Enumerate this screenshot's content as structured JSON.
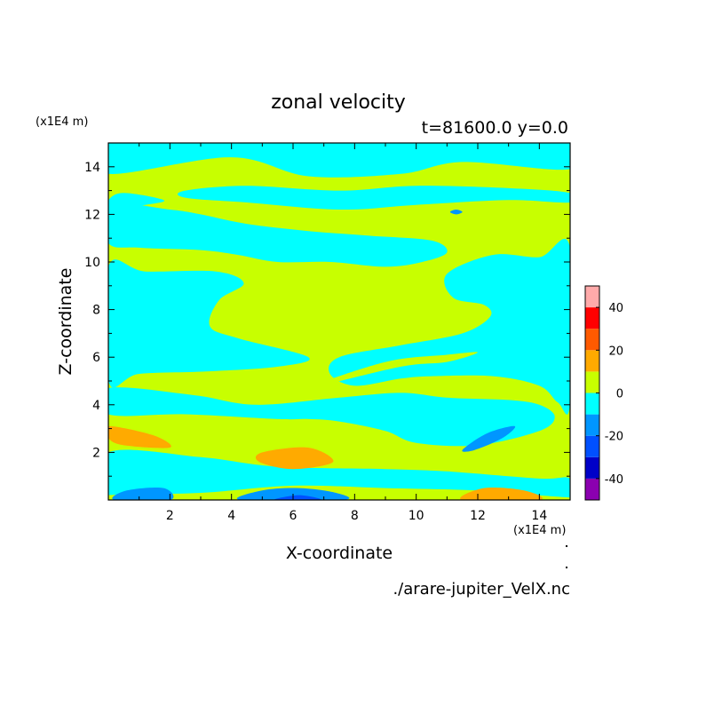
{
  "chart_data": {
    "type": "heatmap",
    "title": "zonal velocity",
    "subtitle": "t=81600.0 y=0.0",
    "xlabel": "X-coordinate",
    "ylabel": "Z-coordinate",
    "x_unit": "(x1E4 m)",
    "y_unit": "(x1E4 m)",
    "source": "./arare-jupiter_VelX.nc",
    "xlim": [
      0,
      15
    ],
    "ylim": [
      0,
      15
    ],
    "x_ticks": [
      "2",
      "4",
      "6",
      "8",
      "10",
      "12",
      "14"
    ],
    "y_ticks": [
      "2",
      "4",
      "6",
      "8",
      "10",
      "12",
      "14"
    ],
    "colorbar": {
      "levels": [
        -50,
        -40,
        -30,
        -20,
        -10,
        0,
        10,
        20,
        30,
        40,
        50
      ],
      "colors": [
        "#8b00b0",
        "#0000c8",
        "#0050ff",
        "#0096ff",
        "#00ffff",
        "#c8ff00",
        "#ffaa00",
        "#ff5a00",
        "#ff0000",
        "#ffaaaa"
      ],
      "tick_labels": [
        "-40",
        "-20",
        "0",
        "20",
        "40"
      ]
    },
    "cyan_regions": [
      [
        [
          0,
          13.7
        ],
        [
          4,
          14.4
        ],
        [
          6.5,
          13.6
        ],
        [
          9.5,
          13.7
        ],
        [
          11.5,
          14.2
        ],
        [
          15,
          13.9
        ],
        [
          15,
          15
        ],
        [
          0,
          15
        ]
      ],
      [
        [
          2.5,
          13.0
        ],
        [
          4.5,
          13.2
        ],
        [
          7.5,
          13.0
        ],
        [
          10,
          13.2
        ],
        [
          13,
          13.1
        ],
        [
          15,
          12.9
        ],
        [
          15,
          12.5
        ],
        [
          13,
          12.6
        ],
        [
          10,
          12.4
        ],
        [
          7.5,
          12.2
        ],
        [
          4.5,
          12.5
        ],
        [
          2.5,
          12.7
        ]
      ],
      [
        [
          0,
          12.4
        ],
        [
          2.0,
          12.2
        ],
        [
          3.0,
          12.0
        ],
        [
          4.5,
          11.6
        ],
        [
          6.5,
          11.3
        ],
        [
          8.5,
          11.1
        ],
        [
          10.5,
          10.9
        ],
        [
          11.0,
          10.4
        ],
        [
          10.2,
          10.0
        ],
        [
          9.0,
          9.8
        ],
        [
          7.2,
          10.0
        ],
        [
          5.5,
          10.0
        ],
        [
          4.2,
          10.3
        ],
        [
          3.0,
          10.5
        ],
        [
          1.0,
          10.6
        ],
        [
          0,
          10.8
        ]
      ],
      [
        [
          0,
          12.6
        ],
        [
          0.5,
          12.9
        ],
        [
          1.8,
          12.6
        ],
        [
          1.2,
          12.4
        ],
        [
          0,
          12.2
        ]
      ],
      [
        [
          11.0,
          9.5
        ],
        [
          12.5,
          10.3
        ],
        [
          14.0,
          10.2
        ],
        [
          15,
          10.6
        ],
        [
          15,
          4.1
        ],
        [
          14.6,
          4.1
        ],
        [
          14.0,
          4.8
        ],
        [
          12.5,
          5.2
        ],
        [
          10.5,
          5.2
        ],
        [
          9.5,
          5.1
        ],
        [
          8.0,
          4.8
        ],
        [
          7.2,
          5.3
        ],
        [
          7.5,
          6.0
        ],
        [
          9.5,
          6.5
        ],
        [
          11.5,
          7.0
        ],
        [
          12.4,
          7.7
        ],
        [
          12.2,
          8.2
        ],
        [
          11.2,
          8.5
        ]
      ],
      [
        [
          0,
          9.8
        ],
        [
          1.2,
          9.6
        ],
        [
          3.5,
          9.6
        ],
        [
          4.4,
          9.1
        ],
        [
          3.6,
          8.4
        ],
        [
          3.3,
          7.3
        ],
        [
          4.2,
          6.8
        ],
        [
          6.5,
          6.0
        ],
        [
          5.5,
          5.6
        ],
        [
          3.2,
          5.4
        ],
        [
          1.0,
          5.3
        ],
        [
          0,
          5.0
        ]
      ],
      [
        [
          0,
          4.7
        ],
        [
          2.8,
          4.4
        ],
        [
          4.8,
          4.0
        ],
        [
          7.5,
          4.3
        ],
        [
          9.5,
          4.5
        ],
        [
          11,
          4.3
        ],
        [
          13,
          4.2
        ],
        [
          14,
          4.0
        ],
        [
          14.5,
          3.5
        ],
        [
          14.0,
          2.9
        ],
        [
          12.0,
          2.3
        ],
        [
          10.0,
          2.4
        ],
        [
          9.0,
          2.9
        ],
        [
          7.5,
          3.3
        ],
        [
          6.5,
          3.4
        ],
        [
          5.5,
          3.4
        ],
        [
          2.5,
          3.6
        ],
        [
          0,
          3.6
        ]
      ],
      [
        [
          0,
          2.0
        ],
        [
          3,
          1.8
        ],
        [
          5.5,
          1.4
        ],
        [
          9,
          1.3
        ],
        [
          11,
          1.2
        ],
        [
          14,
          0.9
        ],
        [
          15,
          0.9
        ],
        [
          15,
          0
        ],
        [
          0,
          0
        ]
      ]
    ],
    "yellow_regions": [
      [
        [
          0,
          0.2
        ],
        [
          3,
          0.3
        ],
        [
          6,
          0.6
        ],
        [
          9,
          0.5
        ],
        [
          12,
          0.4
        ],
        [
          14,
          0.2
        ],
        [
          14.2,
          0
        ],
        [
          0,
          0
        ]
      ],
      [
        [
          6.5,
          4.7
        ],
        [
          9.5,
          5.6
        ],
        [
          11,
          5.8
        ],
        [
          12,
          6.2
        ],
        [
          11,
          6.1
        ],
        [
          9,
          5.8
        ]
      ]
    ],
    "contour_features": [
      {
        "name": "orange-lobe-upper-left",
        "color": "#ffaa00",
        "points": [
          [
            0,
            3.1
          ],
          [
            1.5,
            2.7
          ],
          [
            2,
            2.2
          ],
          [
            0.5,
            2.3
          ],
          [
            0,
            2.6
          ]
        ]
      },
      {
        "name": "orange-lobe-middle",
        "color": "#ffaa00",
        "points": [
          [
            5.0,
            2.0
          ],
          [
            6.5,
            2.2
          ],
          [
            7.3,
            1.6
          ],
          [
            6.0,
            1.3
          ],
          [
            4.9,
            1.6
          ]
        ]
      },
      {
        "name": "orange-lobe-bottom-right",
        "color": "#ffaa00",
        "points": [
          [
            11.5,
            0
          ],
          [
            12.2,
            0.5
          ],
          [
            13.5,
            0.4
          ],
          [
            14.0,
            0
          ]
        ]
      },
      {
        "name": "blue-lobe-right",
        "color": "#0096ff",
        "points": [
          [
            11.5,
            2.1
          ],
          [
            12.3,
            2.8
          ],
          [
            13.2,
            3.1
          ],
          [
            12.8,
            2.6
          ],
          [
            11.9,
            2.1
          ]
        ]
      },
      {
        "name": "blue-lobe-bottom-left",
        "color": "#0096ff",
        "points": [
          [
            0.2,
            0
          ],
          [
            0.6,
            0.4
          ],
          [
            1.8,
            0.5
          ],
          [
            2.0,
            0
          ]
        ]
      },
      {
        "name": "blue-lobe-bottom-middle",
        "color": "#0096ff",
        "points": [
          [
            4.3,
            0
          ],
          [
            5.0,
            0.4
          ],
          [
            6.2,
            0.5
          ],
          [
            7.4,
            0.3
          ],
          [
            7.6,
            0
          ]
        ]
      },
      {
        "name": "blue-spot-upper",
        "color": "#0096ff",
        "points": [
          [
            11.1,
            12.1
          ],
          [
            11.3,
            12.2
          ],
          [
            11.5,
            12.1
          ],
          [
            11.3,
            12.0
          ]
        ]
      },
      {
        "name": "blue-spot-bottom",
        "color": "#0050ff",
        "points": [
          [
            5.4,
            0
          ],
          [
            6.2,
            0.2
          ],
          [
            6.9,
            0
          ]
        ]
      }
    ]
  }
}
